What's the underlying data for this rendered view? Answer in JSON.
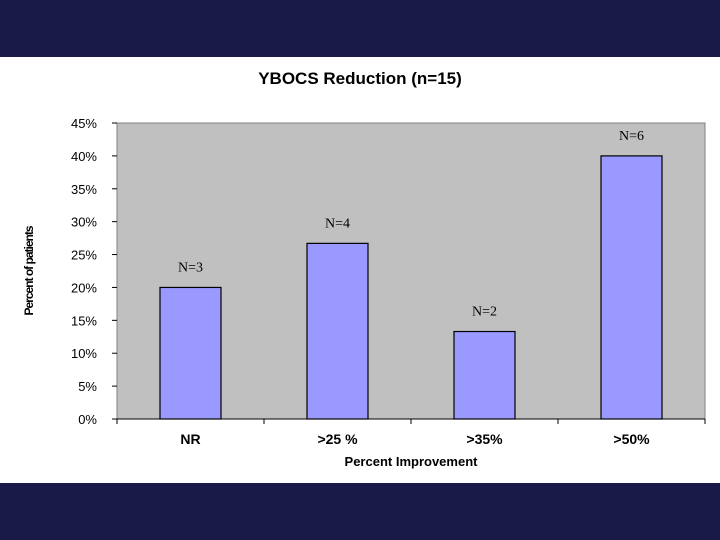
{
  "chart_data": {
    "type": "bar",
    "title": "YBOCS Reduction (n=15)",
    "xlabel": "Percent Improvement",
    "ylabel": "Percent of patients",
    "categories": [
      "NR",
      ">25 %",
      ">35%",
      ">50%"
    ],
    "values": [
      20,
      26.7,
      13.3,
      40
    ],
    "annotations": [
      "N=3",
      "N=4",
      "N=2",
      "N=6"
    ],
    "ylim": [
      0,
      45
    ],
    "yticks": [
      "0%",
      "5%",
      "10%",
      "15%",
      "20%",
      "25%",
      "30%",
      "35%",
      "40%",
      "45%"
    ],
    "grid": false,
    "legend": "none",
    "colors": {
      "bar": "#9999ff",
      "plot_background": "#c0c0c0",
      "band": "#1a1a48"
    }
  }
}
